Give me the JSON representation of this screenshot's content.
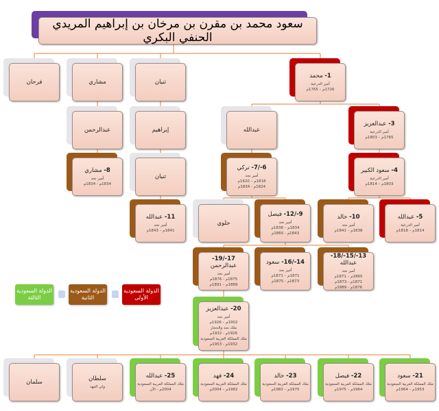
{
  "root": {
    "name": "سعود محمد بن مقرن بن مرخان بن إبراهيم المريدي الحنفي البكري"
  },
  "colors": {
    "none": "#e6e6ea",
    "first_state": "#c00000",
    "second_state": "#9c5a1a",
    "third_state": "#7ccd46",
    "root": "#6b3fa3",
    "connector": "#e8965a"
  },
  "nodes": [
    {
      "num": "",
      "name": "فرحان",
      "state": "none",
      "lines": []
    },
    {
      "num": "",
      "name": "مشاري",
      "state": "none",
      "lines": []
    },
    {
      "num": "",
      "name": "ثنيان",
      "state": "none",
      "lines": []
    },
    {
      "num": "1-",
      "name": "محمد",
      "state": "first_state",
      "lines": [
        "أمير الدرعية",
        "1726م – 1765م"
      ]
    },
    {
      "num": "",
      "name": "عبدالرحمن",
      "state": "none",
      "lines": []
    },
    {
      "num": "",
      "name": "إبراهيم",
      "state": "none",
      "lines": []
    },
    {
      "num": "",
      "name": "عبدالله",
      "state": "none",
      "lines": []
    },
    {
      "num": "3-",
      "name": "عبدالعزيز",
      "state": "first_state",
      "lines": [
        "أمير الدرعية",
        "1765م – 1803م"
      ]
    },
    {
      "num": "8-",
      "name": "مشاري",
      "state": "second_state",
      "lines": [
        "أمير نجد",
        "1834م - 1834م"
      ]
    },
    {
      "num": "",
      "name": "ثنيان",
      "state": "none",
      "lines": []
    },
    {
      "num": "6-/7-",
      "name": "تركي",
      "state": "second_state",
      "lines": [
        "أمير نجد",
        "1818م – 1820م",
        "1824م - 1834م"
      ]
    },
    {
      "num": "4-",
      "name": "سعود الكبير",
      "state": "first_state",
      "lines": [
        "أمير الدرعية",
        "1803م – 1814م"
      ]
    },
    {
      "num": "11-",
      "name": "عبدالله",
      "state": "second_state",
      "lines": [
        "أمير نجد",
        "1841م – 1843م"
      ]
    },
    {
      "num": "",
      "name": "جلوي",
      "state": "none",
      "lines": []
    },
    {
      "num": "9-/12-",
      "name": "فيصل",
      "state": "second_state",
      "lines": [
        "أمير نجد",
        "1834م – 1838م",
        "1843م - 1865م"
      ]
    },
    {
      "num": "10-",
      "name": "خالد",
      "state": "second_state",
      "lines": [
        "أمير نجد",
        "1838م – 1841م"
      ]
    },
    {
      "num": "5-",
      "name": "عبدالله",
      "state": "first_state",
      "lines": [
        "أمير الدرعية",
        "1814م – 1818م"
      ]
    },
    {
      "num": "17-/19-",
      "name": "عبدالرحمن",
      "state": "second_state",
      "lines": [
        "أمير نجد",
        "1875م - 1876م",
        "1889م – 1891م"
      ]
    },
    {
      "num": "14-/16-",
      "name": "سعود",
      "state": "second_state",
      "lines": [
        "أمير نجد",
        "1871م – 1871م",
        "1873م - 1875م"
      ]
    },
    {
      "num": "13-/15-/18-",
      "name": "عبدالله",
      "state": "second_state",
      "lines": [
        "أمير نجد",
        "1865م – 1871م",
        "1871م - 1873م",
        "1876م - 1889م"
      ]
    },
    {
      "num": "20-",
      "name": "عبدالعزيز",
      "state": "third_state",
      "lines": [
        "أمير نجد",
        "1902م – 1926م",
        "ملك نجد والحجاز",
        "1926م - 1932م",
        "ملك المملكة العربية السعودية",
        "1932م - 1953م"
      ]
    },
    {
      "num": "",
      "name": "سلمان",
      "state": "none",
      "lines": []
    },
    {
      "num": "",
      "name": "سلطان",
      "state": "none",
      "lines": [
        "ولي العهد"
      ]
    },
    {
      "num": "25-",
      "name": "عبدالله",
      "state": "third_state",
      "lines": [
        "ملك المملكة العربية السعودية",
        "2004م - الآن"
      ]
    },
    {
      "num": "24-",
      "name": "فهد",
      "state": "third_state",
      "lines": [
        "ملك المملكة العربية السعودية",
        "1982م – 2004م"
      ]
    },
    {
      "num": "23-",
      "name": "خالد",
      "state": "third_state",
      "lines": [
        "ملك المملكة العربية السعودية",
        "1975م – 1982م"
      ]
    },
    {
      "num": "22-",
      "name": "فيصل",
      "state": "third_state",
      "lines": [
        "ملك المملكة العربية السعودية",
        "1964م – 1975م"
      ]
    },
    {
      "num": "21-",
      "name": "سعود",
      "state": "third_state",
      "lines": [
        "ملك المملكة العربية السعودية",
        "1953م – 1964م"
      ]
    }
  ],
  "legend": [
    {
      "label": "الدولة السعودية الثالثة",
      "state": "third_state"
    },
    {
      "label": "الدولة السعودية الثانية",
      "state": "second_state"
    },
    {
      "label": "الدولة السعودية الأولى",
      "state": "first_state"
    }
  ]
}
